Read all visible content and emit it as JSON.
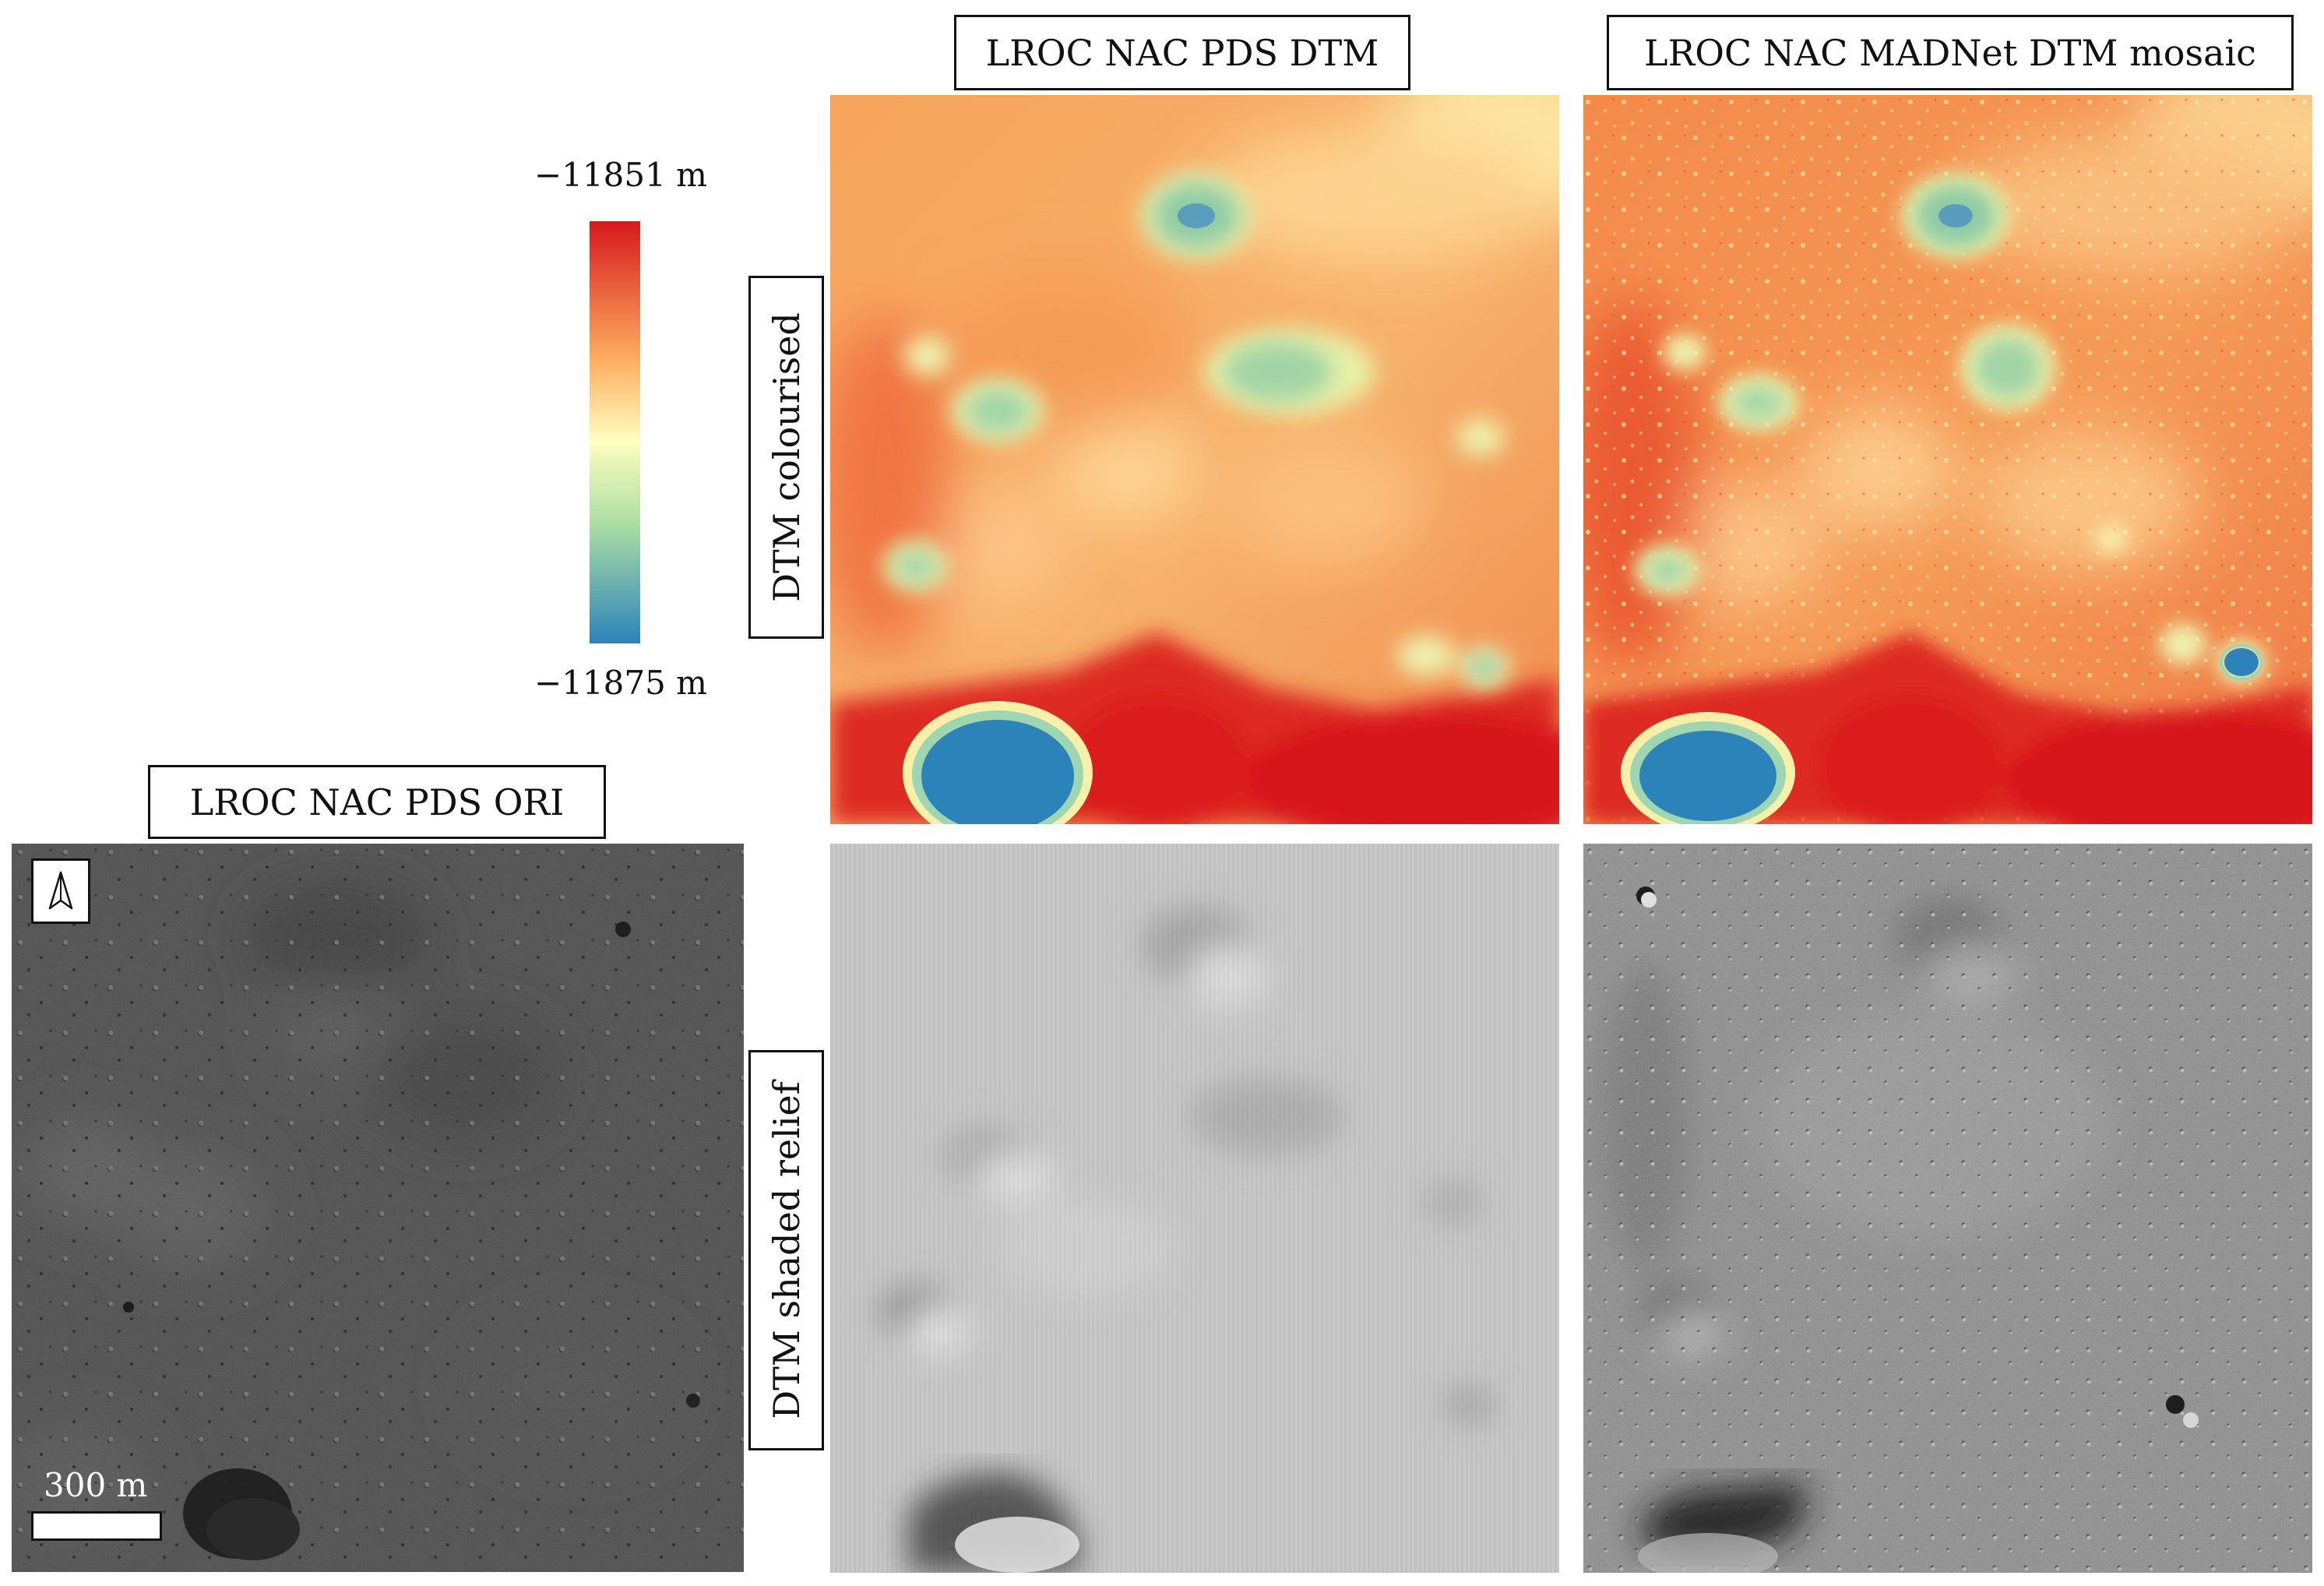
{
  "titles": {
    "pds_dtm": "LROC NAC PDS DTM",
    "madnet": "LROC NAC MADNet DTM mosaic",
    "pds_ori": "LROC NAC PDS ORI"
  },
  "row_labels": {
    "colourised": "DTM colourised",
    "shaded": "DTM shaded relief"
  },
  "colorbar": {
    "max_label": "−11851 m",
    "min_label": "−11875 m",
    "colormap": [
      "#d7191c",
      "#fdae61",
      "#ffffbf",
      "#abdda4",
      "#2b83ba"
    ]
  },
  "scale": {
    "label": "300 m"
  },
  "icons": {
    "north": "north-arrow-icon"
  }
}
